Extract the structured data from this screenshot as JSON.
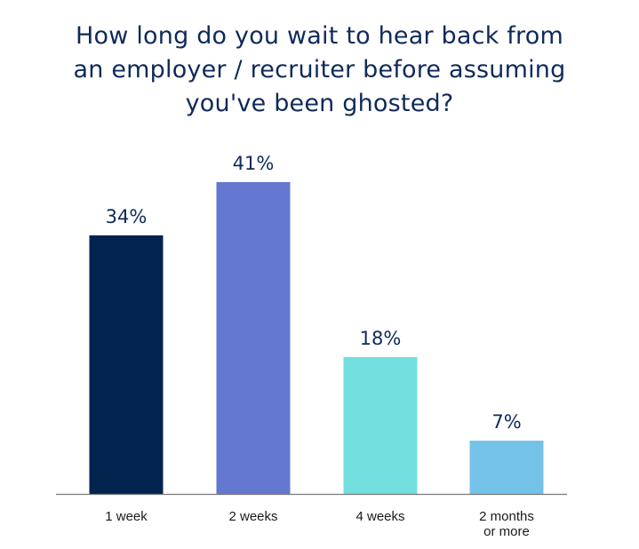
{
  "title_lines": [
    "How long do you wait to hear back from",
    "an employer / recruiter before assuming",
    "you've been ghosted?"
  ],
  "chart_data": {
    "type": "bar",
    "title": "How long do you wait to hear back from an employer / recruiter before assuming you've been ghosted?",
    "categories": [
      "1 week",
      "2 weeks",
      "4 weeks",
      "2 months or more"
    ],
    "category_lines": [
      [
        "1 week"
      ],
      [
        "2 weeks"
      ],
      [
        "4 weeks"
      ],
      [
        "2 months",
        "or more"
      ]
    ],
    "values": [
      34,
      41,
      18,
      7
    ],
    "value_labels": [
      "34%",
      "41%",
      "18%",
      "7%"
    ],
    "colors": [
      "#03234f",
      "#6478d2",
      "#72dede",
      "#74c2e8"
    ],
    "ylim": [
      0,
      41
    ],
    "grid": false,
    "legend": "none"
  }
}
